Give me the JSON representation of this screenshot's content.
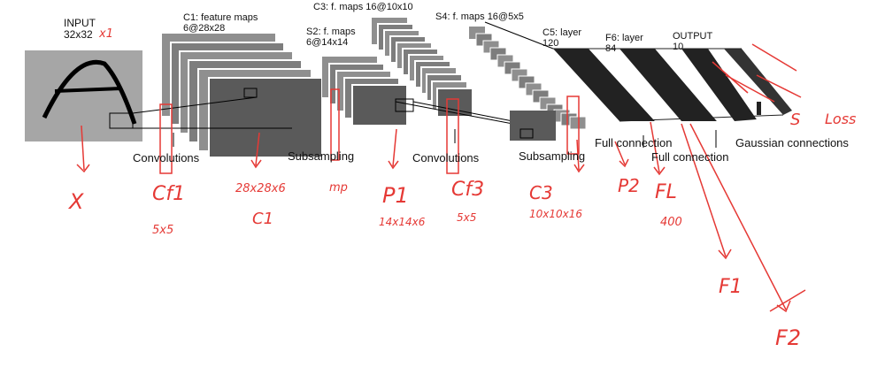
{
  "labels": {
    "input": "INPUT",
    "input_size": "32x32",
    "c1": "C1: feature maps",
    "c1_size": "6@28x28",
    "c3": "C3: f. maps 16@10x10",
    "s4": "S4: f. maps 16@5x5",
    "s2": "S2: f. maps",
    "s2_size": "6@14x14",
    "c5": "C5: layer",
    "c5_size": "120",
    "f6": "F6: layer",
    "f6_size": "84",
    "output": "OUTPUT",
    "output_size": "10"
  },
  "operations": {
    "conv1": "Convolutions",
    "sub1": "Subsampling",
    "conv2": "Convolutions",
    "sub2": "Subsampling",
    "full1": "Full connection",
    "full2": "Full connection",
    "gauss": "Gaussian connections"
  },
  "annotations": {
    "input_channels": "x1",
    "x": "X",
    "cf1": "Cf1",
    "cf1_size": "5x5",
    "c1_shape": "28x28x6",
    "c1": "C1",
    "mp": "mp",
    "p1": "P1",
    "p1_shape": "14x14x6",
    "cf3": "Cf3",
    "cf3_size": "5x5",
    "c3": "C3",
    "c3_shape": "10x10x16",
    "p2": "P2",
    "fl": "FL",
    "fl_size": "400",
    "f1": "F1",
    "f2": "F2",
    "s": "S",
    "loss": "Loss"
  }
}
